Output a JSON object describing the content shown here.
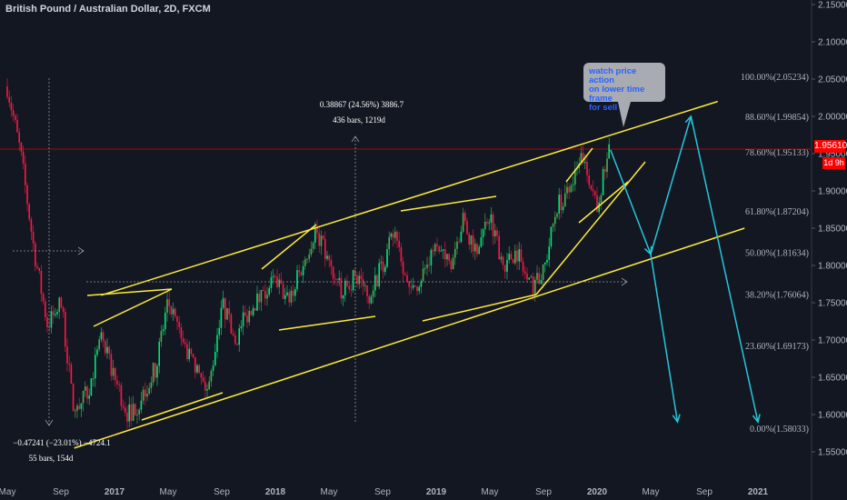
{
  "title": "British Pound / Australian Dollar, 2D, FXCM",
  "note": {
    "lines": [
      "watch price action",
      "on lower time frame",
      "for sell"
    ]
  },
  "last_price_label": "1.95610",
  "timer_label": "1d 9h",
  "measure_up": {
    "line1": "0.38867 (24.56%) 3886.7",
    "line2": "436 bars, 1219d"
  },
  "measure_down": {
    "line1": "−0.47241 (−23.01%) −4724.1",
    "line2": "55 bars, 154d"
  },
  "fib_levels": [
    {
      "label": "100.00%(2.05234)",
      "price": 2.05234
    },
    {
      "label": "88.60%(1.99854)",
      "price": 1.99854
    },
    {
      "label": "78.60%(1.95133)",
      "price": 1.95133
    },
    {
      "label": "61.80%(1.87204)",
      "price": 1.87204
    },
    {
      "label": "50.00%(1.81634)",
      "price": 1.81634
    },
    {
      "label": "38.20%(1.76064)",
      "price": 1.76064
    },
    {
      "label": "23.60%(1.69173)",
      "price": 1.69173
    },
    {
      "label": "0.00%(1.58033)",
      "price": 1.58033
    }
  ],
  "colors": {
    "background": "#131722",
    "up": "#26a69a",
    "up_bright": "#00e676",
    "down": "#ff1744",
    "trendline": "#ffeb3b",
    "projection": "#26c6da",
    "price_line": "#ff0000",
    "grid": "#2a2e39"
  },
  "chart_data": {
    "type": "candlestick",
    "title": "British Pound / Australian Dollar, 2D, FXCM",
    "y_ticks": [
      2.15,
      2.1,
      2.05,
      2.0,
      1.95,
      1.9,
      1.85,
      1.8,
      1.75,
      1.7,
      1.65,
      1.6,
      1.55
    ],
    "y_tick_labels": [
      "2.15000",
      "2.10000",
      "2.05000",
      "2.00000",
      "1.95000",
      "1.90000",
      "1.85000",
      "1.80000",
      "1.75000",
      "1.70000",
      "1.65000",
      "1.60000",
      "1.55000"
    ],
    "ylim": [
      1.525,
      2.155
    ],
    "x_ticks": [
      "May",
      "Sep",
      "2017",
      "May",
      "Sep",
      "2018",
      "May",
      "Sep",
      "2019",
      "May",
      "Sep",
      "2020",
      "May",
      "Sep",
      "2021"
    ],
    "last_price": 1.9561,
    "price_path": [
      [
        "2016-05",
        2.04
      ],
      [
        "2016-06",
        1.95
      ],
      [
        "2016-07",
        1.82
      ],
      [
        "2016-08",
        1.72
      ],
      [
        "2016-09",
        1.75
      ],
      [
        "2016-10",
        1.6
      ],
      [
        "2016-11",
        1.63
      ],
      [
        "2016-12",
        1.7
      ],
      [
        "2017-01",
        1.65
      ],
      [
        "2017-02",
        1.6
      ],
      [
        "2017-03",
        1.62
      ],
      [
        "2017-04",
        1.66
      ],
      [
        "2017-05",
        1.75
      ],
      [
        "2017-06",
        1.7
      ],
      [
        "2017-07",
        1.66
      ],
      [
        "2017-08",
        1.63
      ],
      [
        "2017-09",
        1.75
      ],
      [
        "2017-10",
        1.7
      ],
      [
        "2017-11",
        1.74
      ],
      [
        "2017-12",
        1.76
      ],
      [
        "2018-01",
        1.78
      ],
      [
        "2018-02",
        1.75
      ],
      [
        "2018-03",
        1.8
      ],
      [
        "2018-04",
        1.85
      ],
      [
        "2018-05",
        1.8
      ],
      [
        "2018-06",
        1.76
      ],
      [
        "2018-07",
        1.79
      ],
      [
        "2018-08",
        1.76
      ],
      [
        "2018-09",
        1.8
      ],
      [
        "2018-10",
        1.85
      ],
      [
        "2018-11",
        1.76
      ],
      [
        "2018-12",
        1.79
      ],
      [
        "2019-01",
        1.82
      ],
      [
        "2019-02",
        1.8
      ],
      [
        "2019-03",
        1.86
      ],
      [
        "2019-04",
        1.82
      ],
      [
        "2019-05",
        1.87
      ],
      [
        "2019-06",
        1.8
      ],
      [
        "2019-07",
        1.82
      ],
      [
        "2019-08",
        1.77
      ],
      [
        "2019-09",
        1.79
      ],
      [
        "2019-10",
        1.88
      ],
      [
        "2019-11",
        1.9
      ],
      [
        "2019-12",
        1.95
      ],
      [
        "2020-01",
        1.88
      ],
      [
        "2020-02",
        1.96
      ]
    ],
    "trendlines": [
      {
        "name": "channel-top",
        "points": [
          [
            "2016-12",
            1.76
          ],
          [
            "2020-10",
            2.02
          ]
        ]
      },
      {
        "name": "channel-bottom",
        "points": [
          [
            "2016-10",
            1.555
          ],
          [
            "2020-12",
            1.85
          ]
        ]
      }
    ],
    "projection": [
      [
        "2020-02",
        1.955
      ],
      [
        "2020-05",
        1.815
      ],
      [
        "2020-08",
        2.0
      ],
      [
        "2021-01",
        1.59
      ]
    ],
    "projection_alt": [
      [
        "2020-05",
        1.815
      ],
      [
        "2020-07",
        1.59
      ]
    ]
  }
}
